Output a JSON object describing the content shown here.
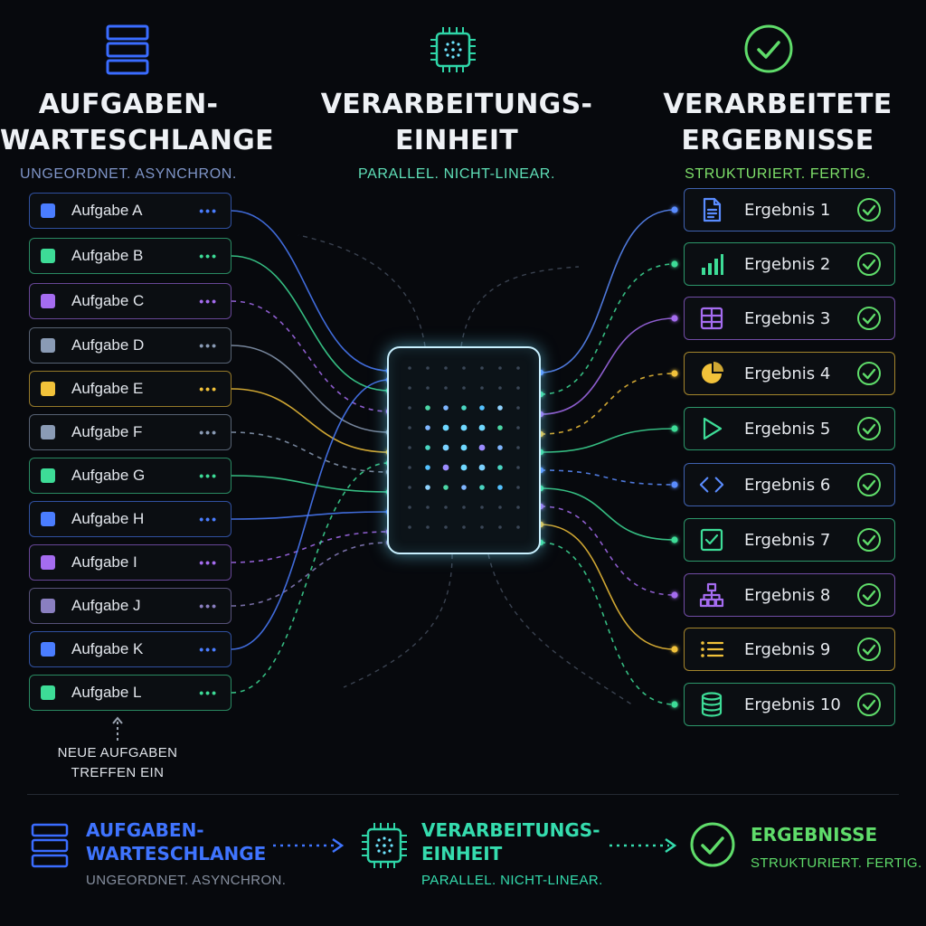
{
  "columns": {
    "queue": {
      "title_line1": "AUFGABEN-",
      "title_line2": "WARTESCHLANGE",
      "subtitle": "UNGEORDNET. ASYNCHRON.",
      "icon": "stack-icon",
      "color": "#7f95c8"
    },
    "processor": {
      "title_line1": "VERARBEITUNGS-",
      "title_line2": "EINHEIT",
      "subtitle": "PARALLEL. NICHT-LINEAR.",
      "icon": "chip-icon",
      "color": "#5fe0b8"
    },
    "results": {
      "title_line1": "VERARBEITETE",
      "title_line2": "ERGEBNISSE",
      "subtitle": "STRUKTURIERT. FERTIG.",
      "icon": "check-circle-icon",
      "color": "#7ee06a"
    }
  },
  "tasks": [
    {
      "label": "Aufgabe A",
      "color": "#4a7dff"
    },
    {
      "label": "Aufgabe B",
      "color": "#3ddc97"
    },
    {
      "label": "Aufgabe C",
      "color": "#a56cf0"
    },
    {
      "label": "Aufgabe D",
      "color": "#8a9bb5"
    },
    {
      "label": "Aufgabe E",
      "color": "#f2c23a"
    },
    {
      "label": "Aufgabe F",
      "color": "#8a9bb5"
    },
    {
      "label": "Aufgabe G",
      "color": "#3ddc97"
    },
    {
      "label": "Aufgabe H",
      "color": "#4a7dff"
    },
    {
      "label": "Aufgabe I",
      "color": "#a56cf0"
    },
    {
      "label": "Aufgabe J",
      "color": "#8a7fc0"
    },
    {
      "label": "Aufgabe K",
      "color": "#4a7dff"
    },
    {
      "label": "Aufgabe L",
      "color": "#3ddc97"
    }
  ],
  "results": [
    {
      "label": "Ergebnis 1",
      "icon": "document-icon",
      "color": "#5a8cff"
    },
    {
      "label": "Ergebnis 2",
      "icon": "bar-chart-icon",
      "color": "#3ddc97"
    },
    {
      "label": "Ergebnis 3",
      "icon": "table-icon",
      "color": "#a56cf0"
    },
    {
      "label": "Ergebnis 4",
      "icon": "pie-chart-icon",
      "color": "#f2c23a"
    },
    {
      "label": "Ergebnis 5",
      "icon": "play-icon",
      "color": "#3ddc97"
    },
    {
      "label": "Ergebnis 6",
      "icon": "code-icon",
      "color": "#5a8cff"
    },
    {
      "label": "Ergebnis 7",
      "icon": "checkbox-icon",
      "color": "#3ddc97"
    },
    {
      "label": "Ergebnis 8",
      "icon": "hierarchy-icon",
      "color": "#a56cf0"
    },
    {
      "label": "Ergebnis 9",
      "icon": "list-icon",
      "color": "#f2c23a"
    },
    {
      "label": "Ergebnis 10",
      "icon": "database-icon",
      "color": "#3ddc97"
    }
  ],
  "check_color": "#5fdc6a",
  "arrival_note": {
    "line1": "NEUE AUFGABEN",
    "line2": "TREFFEN EIN"
  },
  "legend": {
    "queue": {
      "title_line1": "AUFGABEN-",
      "title_line2": "WARTESCHLANGE",
      "subtitle": "UNGEORDNET. ASYNCHRON.",
      "color": "#4a7dff"
    },
    "processor": {
      "title_line1": "VERARBEITUNGS-",
      "title_line2": "EINHEIT",
      "subtitle": "PARALLEL. NICHT-LINEAR.",
      "color": "#3ddcb0"
    },
    "results": {
      "title": "ERGEBNISSE",
      "subtitle": "STRUKTURIERT. FERTIG.",
      "color": "#5fdc6a"
    }
  }
}
